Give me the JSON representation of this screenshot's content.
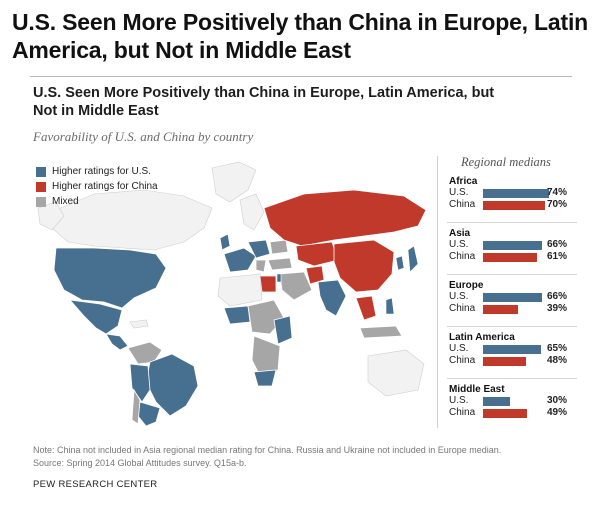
{
  "outer_title": "U.S. Seen More Positively than China in Europe, Latin America, but Not in Middle East",
  "inner_title": "U.S. Seen More Positively than China in Europe, Latin America, but Not in Middle East",
  "subtitle": "Favorability of U.S. and China by country",
  "legend": [
    {
      "label": "Higher ratings for U.S.",
      "color": "#476f8f"
    },
    {
      "label": "Higher ratings for China",
      "color": "#c0392b"
    },
    {
      "label": "Mixed",
      "color": "#a6a6a6"
    }
  ],
  "colors": {
    "us": "#476f8f",
    "china": "#c0392b",
    "mixed": "#a6a6a6",
    "land": "#f2f2f2"
  },
  "chart_data": {
    "type": "bar",
    "title": "Regional medians",
    "xlim": [
      0,
      100
    ],
    "series": [
      {
        "name": "U.S."
      },
      {
        "name": "China"
      }
    ],
    "groups": [
      {
        "name": "Africa",
        "us": 74,
        "china": 70,
        "us_label": "74%",
        "china_label": "70%"
      },
      {
        "name": "Asia",
        "us": 66,
        "china": 61,
        "us_label": "66%",
        "china_label": "61%"
      },
      {
        "name": "Europe",
        "us": 66,
        "china": 39,
        "us_label": "66%",
        "china_label": "39%"
      },
      {
        "name": "Latin America",
        "us": 65,
        "china": 48,
        "us_label": "65%",
        "china_label": "48%"
      },
      {
        "name": "Middle East",
        "us": 30,
        "china": 49,
        "us_label": "30%",
        "china_label": "49%"
      }
    ],
    "row_labels": {
      "us": "U.S.",
      "china": "China"
    }
  },
  "note": "Note: China not included in Asia regional median rating for China. Russia and Ukraine not included in Europe median.",
  "source": "Source: Spring 2014 Global Attitudes survey. Q15a-b.",
  "org": "PEW RESEARCH CENTER"
}
